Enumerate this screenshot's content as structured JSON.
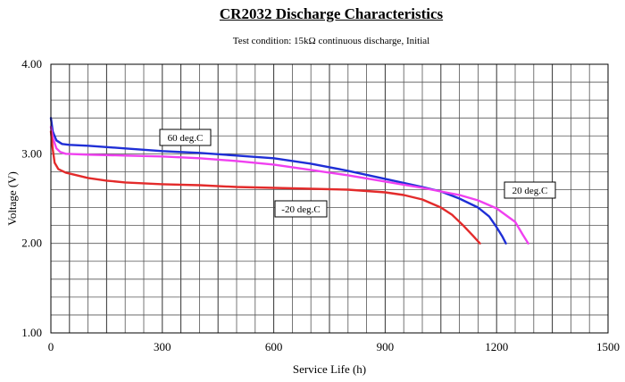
{
  "chart_data": {
    "type": "line",
    "title": "CR2032 Discharge Characteristics",
    "subtitle": "Test condition: 15kΩ continuous discharge, Initial",
    "xlabel": "Service Life (h)",
    "ylabel": "Voltage (V)",
    "xlim": [
      0,
      1500
    ],
    "ylim": [
      1.0,
      4.0
    ],
    "x_ticks": [
      0,
      300,
      600,
      900,
      1200,
      1500
    ],
    "x_tick_labels": [
      "0",
      "300",
      "600",
      "900",
      "1200",
      "1500"
    ],
    "y_ticks": [
      1.0,
      2.0,
      3.0,
      4.0
    ],
    "y_tick_labels": [
      "1.00",
      "2.00",
      "3.00",
      "4.00"
    ],
    "grid": true,
    "series": [
      {
        "name": "60 deg.C",
        "color": "#1f2fd6",
        "points": [
          [
            0,
            3.4
          ],
          [
            5,
            3.25
          ],
          [
            15,
            3.15
          ],
          [
            30,
            3.11
          ],
          [
            50,
            3.1
          ],
          [
            100,
            3.09
          ],
          [
            200,
            3.06
          ],
          [
            300,
            3.03
          ],
          [
            400,
            3.01
          ],
          [
            500,
            2.98
          ],
          [
            600,
            2.95
          ],
          [
            700,
            2.89
          ],
          [
            800,
            2.81
          ],
          [
            900,
            2.72
          ],
          [
            1000,
            2.63
          ],
          [
            1050,
            2.58
          ],
          [
            1100,
            2.5
          ],
          [
            1150,
            2.4
          ],
          [
            1180,
            2.3
          ],
          [
            1200,
            2.18
          ],
          [
            1215,
            2.08
          ],
          [
            1225,
            2.0
          ]
        ]
      },
      {
        "name": "20 deg.C",
        "color": "#f040f0",
        "points": [
          [
            0,
            3.3
          ],
          [
            5,
            3.18
          ],
          [
            15,
            3.06
          ],
          [
            25,
            3.02
          ],
          [
            40,
            3.0
          ],
          [
            100,
            2.99
          ],
          [
            200,
            2.98
          ],
          [
            300,
            2.97
          ],
          [
            400,
            2.95
          ],
          [
            500,
            2.92
          ],
          [
            600,
            2.88
          ],
          [
            700,
            2.82
          ],
          [
            800,
            2.76
          ],
          [
            900,
            2.69
          ],
          [
            1000,
            2.62
          ],
          [
            1050,
            2.58
          ],
          [
            1100,
            2.54
          ],
          [
            1150,
            2.48
          ],
          [
            1200,
            2.39
          ],
          [
            1250,
            2.24
          ],
          [
            1270,
            2.1
          ],
          [
            1285,
            2.0
          ]
        ]
      },
      {
        "name": "-20 deg.C",
        "color": "#e32b2b",
        "points": [
          [
            0,
            3.25
          ],
          [
            5,
            3.05
          ],
          [
            10,
            2.9
          ],
          [
            20,
            2.83
          ],
          [
            40,
            2.79
          ],
          [
            60,
            2.77
          ],
          [
            100,
            2.73
          ],
          [
            150,
            2.7
          ],
          [
            200,
            2.68
          ],
          [
            300,
            2.66
          ],
          [
            400,
            2.65
          ],
          [
            500,
            2.63
          ],
          [
            600,
            2.62
          ],
          [
            700,
            2.61
          ],
          [
            800,
            2.6
          ],
          [
            900,
            2.57
          ],
          [
            950,
            2.54
          ],
          [
            1000,
            2.49
          ],
          [
            1050,
            2.4
          ],
          [
            1080,
            2.32
          ],
          [
            1110,
            2.2
          ],
          [
            1135,
            2.09
          ],
          [
            1155,
            2.0
          ]
        ]
      }
    ],
    "annotations": [
      {
        "text": "60 deg.C",
        "series": "60 deg.C"
      },
      {
        "text": "20 deg.C",
        "series": "20 deg.C"
      },
      {
        "text": "-20 deg.C",
        "series": "-20 deg.C"
      }
    ]
  }
}
